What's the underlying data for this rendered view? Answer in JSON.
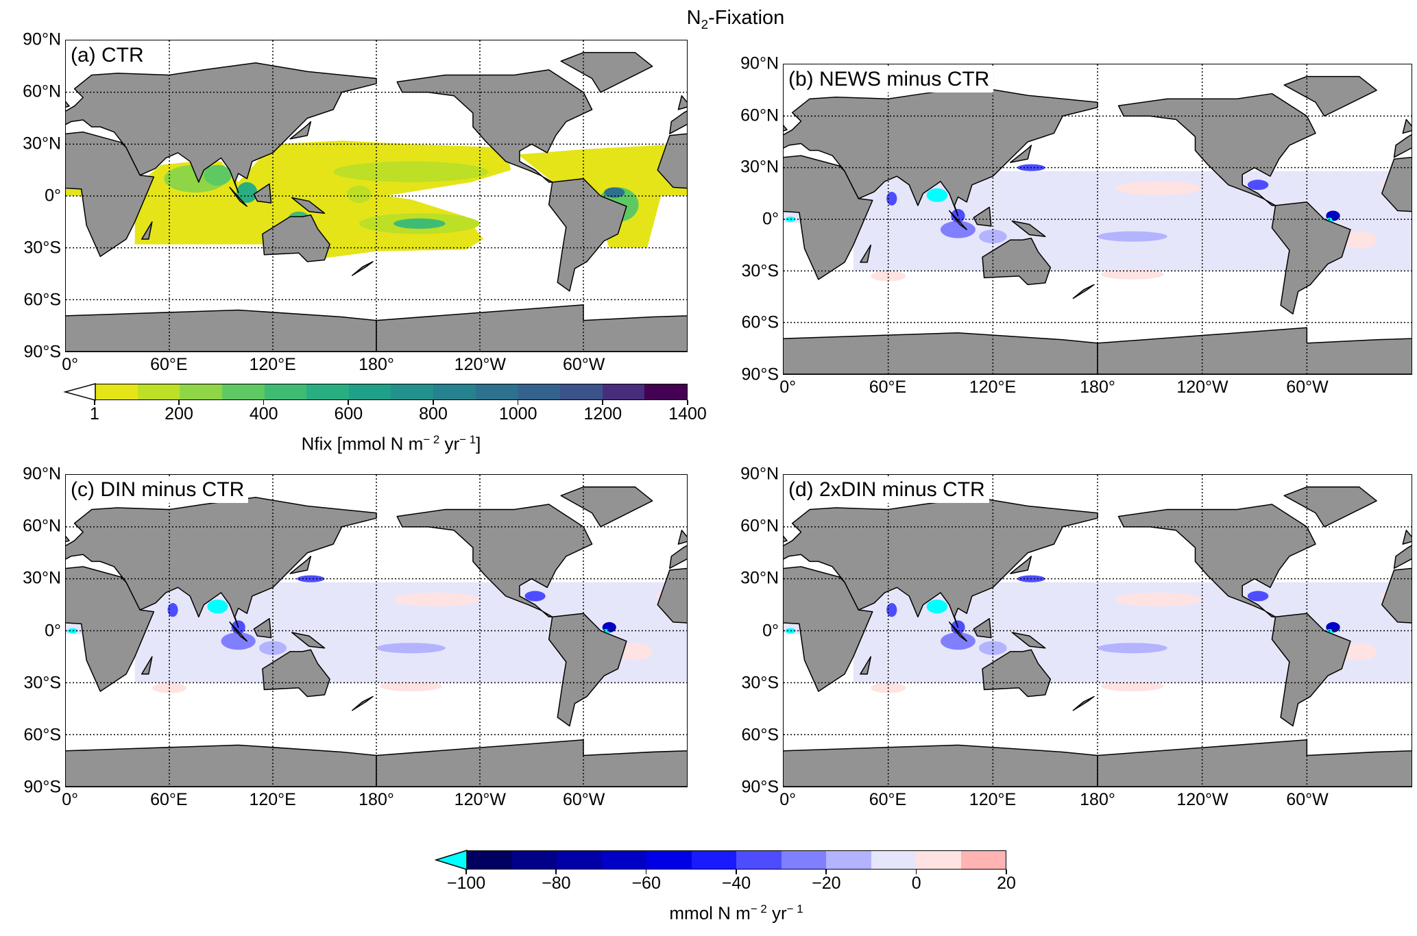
{
  "figure_title": {
    "prefix": "N",
    "sub": "2",
    "suffix": "-Fixation"
  },
  "chart_data": {
    "type": "heatmap",
    "title": "N2-Fixation",
    "lat_ticks": [
      "90°N",
      "60°N",
      "30°N",
      "0°",
      "30°S",
      "60°S",
      "90°S"
    ],
    "lat_values": [
      90,
      60,
      30,
      0,
      -30,
      -60,
      -90
    ],
    "lon_ticks": [
      "0°",
      "60°E",
      "120°E",
      "180°",
      "120°W",
      "60°W"
    ],
    "lon_values": [
      0,
      60,
      120,
      180,
      240,
      300
    ],
    "grid": true,
    "panels": [
      {
        "id": "a",
        "label": "(a) CTR",
        "field": "absolute"
      },
      {
        "id": "b",
        "label": "(b) NEWS minus CTR",
        "field": "difference"
      },
      {
        "id": "c",
        "label": "(c) DIN minus CTR",
        "field": "difference"
      },
      {
        "id": "d",
        "label": "(d) 2xDIN minus CTR",
        "field": "difference"
      }
    ],
    "colorbars": [
      {
        "id": "nfix",
        "label_prefix": "Nfix [mmol N m",
        "label_exp1": "− 2",
        "label_mid": " yr",
        "label_exp2": "− 1",
        "label_suffix": "]",
        "boundaries": [
          1,
          100,
          200,
          300,
          400,
          500,
          600,
          700,
          800,
          900,
          1000,
          1100,
          1200,
          1300,
          1400
        ],
        "ticks": [
          "1",
          "200",
          "400",
          "600",
          "800",
          "1000",
          "1200",
          "1400"
        ],
        "tick_values": [
          1,
          200,
          400,
          600,
          800,
          1000,
          1200,
          1400
        ],
        "extend": "min",
        "extend_color": "#ffffff",
        "colors": [
          "#e5e419",
          "#bddf26",
          "#8ed645",
          "#5ec962",
          "#3fbc73",
          "#28ae80",
          "#1fa088",
          "#21918c",
          "#26828e",
          "#2c728e",
          "#33638d",
          "#3b528b",
          "#472d7b",
          "#440154"
        ]
      },
      {
        "id": "diff",
        "label_prefix": "mmol N m",
        "label_exp1": "− 2",
        "label_mid": " yr",
        "label_exp2": "− 1",
        "label_suffix": "",
        "boundaries": [
          -100,
          -90,
          -80,
          -70,
          -60,
          -50,
          -40,
          -30,
          -20,
          -10,
          0,
          10,
          20
        ],
        "ticks": [
          "−100",
          "−80",
          "−60",
          "−40",
          "−20",
          "0",
          "20"
        ],
        "tick_values": [
          -100,
          -80,
          -60,
          -40,
          -20,
          0,
          20
        ],
        "extend": "min",
        "extend_color": "#00ffff",
        "colors": [
          "#000060",
          "#000088",
          "#0000a6",
          "#0000c6",
          "#0000e6",
          "#1a1aff",
          "#4d4dff",
          "#8080ff",
          "#b3b3ff",
          "#e6e6fa",
          "#ffe2e2",
          "#ffb3b3"
        ]
      }
    ],
    "land_color": "#939393"
  }
}
